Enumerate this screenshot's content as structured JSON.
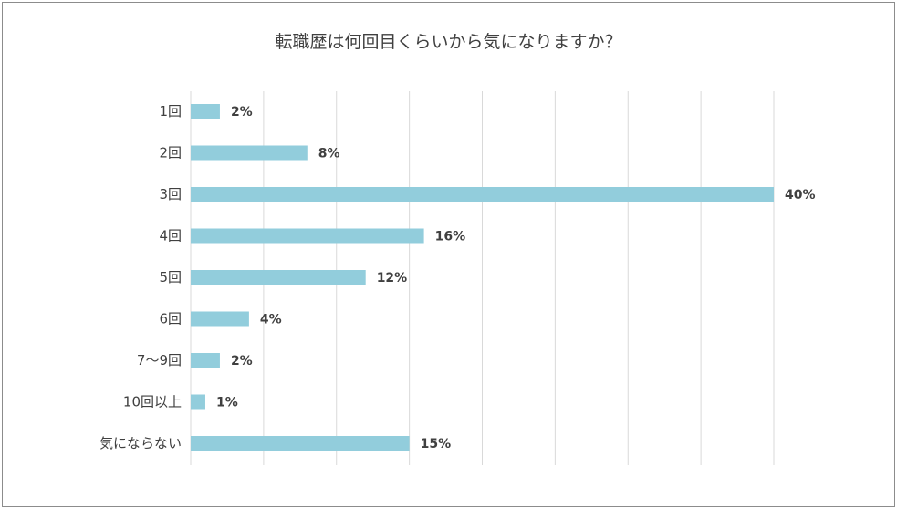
{
  "chart_data": {
    "type": "bar",
    "orientation": "horizontal",
    "title": "転職歴は何回目くらいから気になりますか？",
    "categories": [
      "1回",
      "2回",
      "3回",
      "4回",
      "5回",
      "6回",
      "7～9回",
      "10回以上",
      "気にならない"
    ],
    "values": [
      2,
      8,
      40,
      16,
      12,
      4,
      2,
      1,
      15
    ],
    "data_labels": [
      "2%",
      "8%",
      "40%",
      "16%",
      "12%",
      "4%",
      "2%",
      "1%",
      "15%"
    ],
    "xlim": [
      0,
      40
    ],
    "grid": true,
    "legend": "none",
    "bar_color": "#92cddc"
  }
}
